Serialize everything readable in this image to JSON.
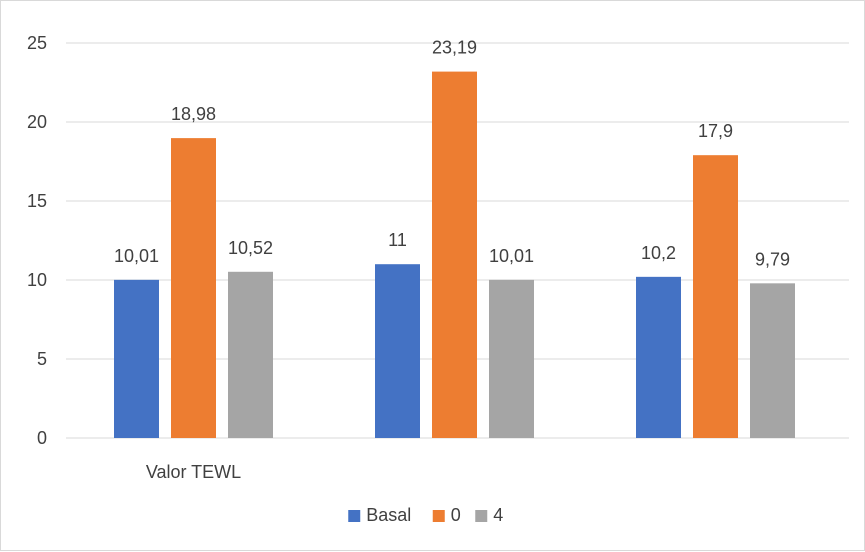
{
  "chart_data": {
    "type": "bar",
    "categories": [
      "Valor TEWL",
      "",
      ""
    ],
    "series": [
      {
        "name": "Basal",
        "color": "#4472c4",
        "values": [
          10.01,
          11,
          10.2
        ],
        "labels": [
          "10,01",
          "11",
          "10,2"
        ]
      },
      {
        "name": "0",
        "color": "#ed7d31",
        "values": [
          18.98,
          23.19,
          17.9
        ],
        "labels": [
          "18,98",
          "23,19",
          "17,9"
        ]
      },
      {
        "name": "4",
        "color": "#a5a5a5",
        "values": [
          10.52,
          10.01,
          9.79
        ],
        "labels": [
          "10,52",
          "10,01",
          "9,79"
        ]
      }
    ],
    "yticks": [
      0,
      5,
      10,
      15,
      20,
      25
    ],
    "ylim": [
      0,
      25
    ],
    "grid": true,
    "legend": "bottom",
    "title": "",
    "xlabel": "",
    "ylabel": ""
  }
}
